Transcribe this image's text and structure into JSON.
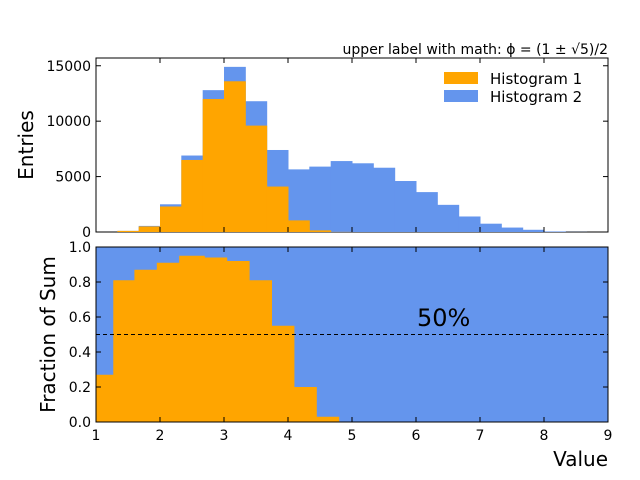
{
  "chart_data": [
    {
      "type": "bar",
      "panel": "upper",
      "ylabel": "Entries",
      "ylim": [
        0,
        15700
      ],
      "xlim": [
        1,
        9
      ],
      "yticks": [
        0,
        5000,
        10000,
        15000
      ],
      "legend_position": "top-right",
      "annotation": "upper label with math: ϕ = (1 ± √5)/2",
      "bin_edges": [
        1.0,
        1.333,
        1.667,
        2.0,
        2.333,
        2.667,
        3.0,
        3.333,
        3.667,
        4.0,
        4.333,
        4.667,
        5.0,
        5.333,
        5.667,
        6.0,
        6.333,
        6.667,
        7.0,
        7.333,
        7.667,
        8.0,
        8.333,
        8.667,
        9.0
      ],
      "series": [
        {
          "name": "Histogram 1",
          "color": "#ffa500",
          "values": [
            0,
            100,
            500,
            2300,
            6500,
            12000,
            13600,
            9600,
            4100,
            1050,
            150,
            10,
            0,
            0,
            0,
            0,
            0,
            0,
            0,
            0,
            0,
            0,
            0,
            0
          ]
        },
        {
          "name": "Histogram 2",
          "color": "#6495ed",
          "values": [
            0,
            100,
            550,
            2500,
            6900,
            12800,
            14900,
            11800,
            7400,
            5650,
            5900,
            6400,
            6200,
            5800,
            4600,
            3600,
            2450,
            1400,
            750,
            400,
            200,
            50,
            10,
            0
          ]
        }
      ]
    },
    {
      "type": "area",
      "panel": "lower",
      "ylabel": "Fraction of Sum",
      "xlabel": "Value",
      "xlim": [
        1,
        9
      ],
      "ylim": [
        0,
        1
      ],
      "xticks": [
        1,
        2,
        3,
        4,
        5,
        6,
        7,
        8,
        9
      ],
      "yticks": [
        0.0,
        0.2,
        0.4,
        0.6,
        0.8,
        1.0
      ],
      "reference_line": 0.5,
      "annotation": "50%",
      "fraction_hist1": [
        [
          1.0,
          0.27
        ],
        [
          1.27,
          0.81
        ],
        [
          1.6,
          0.87
        ],
        [
          1.95,
          0.91
        ],
        [
          2.3,
          0.95
        ],
        [
          2.7,
          0.94
        ],
        [
          3.05,
          0.92
        ],
        [
          3.4,
          0.81
        ],
        [
          3.75,
          0.55
        ],
        [
          4.1,
          0.2
        ],
        [
          4.45,
          0.03
        ],
        [
          4.8,
          0.0
        ],
        [
          9.0,
          0.0
        ]
      ],
      "fraction_hist2_color": "#6495ed",
      "fraction_hist1_color": "#ffa500"
    }
  ]
}
